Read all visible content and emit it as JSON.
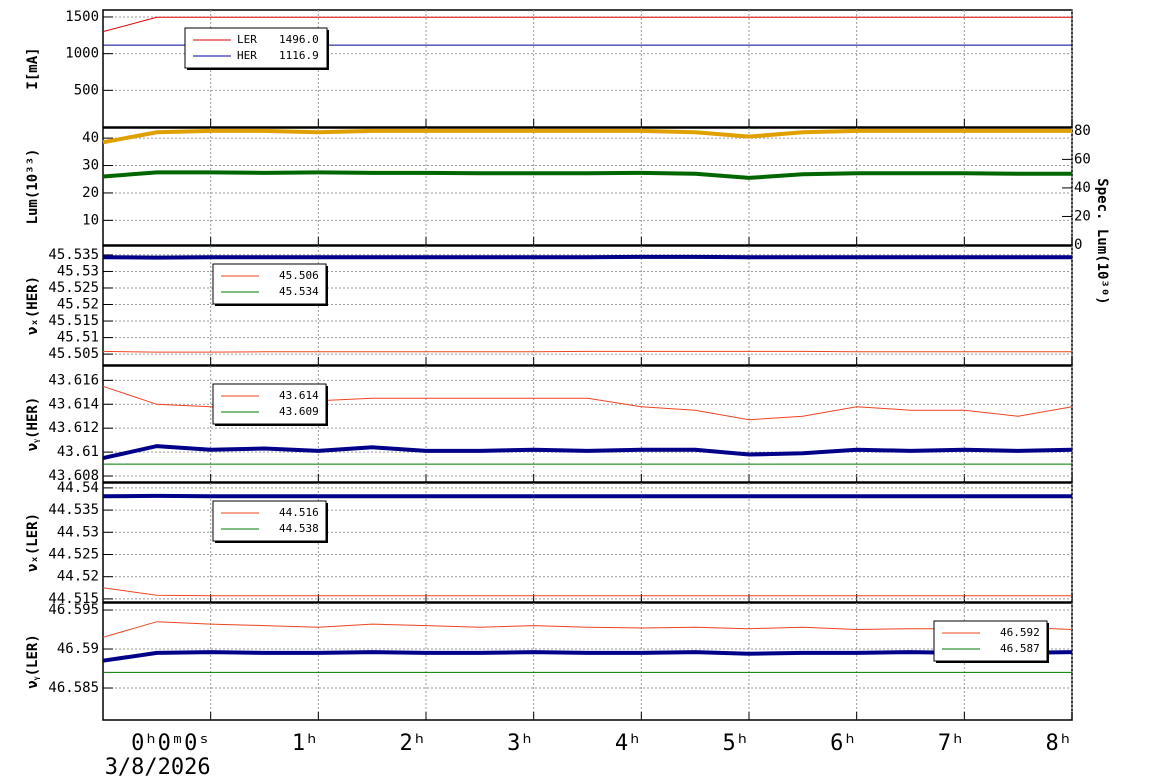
{
  "chart_data": [
    {
      "type": "line",
      "ylabel": "I[mA]",
      "xlim": [
        -1,
        8
      ],
      "xticks": [
        0,
        1,
        2,
        3,
        4,
        5,
        6,
        7,
        8
      ],
      "ylim": [
        0,
        1595
      ],
      "yticks": [
        500,
        1000,
        1500
      ],
      "grid": true,
      "legend": "upper left",
      "x": [
        -1,
        -0.5,
        0,
        0.5,
        1,
        1.5,
        2,
        2.5,
        3,
        3.5,
        4,
        4.5,
        5,
        5.5,
        6,
        6.5,
        7,
        7.5,
        8
      ],
      "series": [
        {
          "name": "LER",
          "legend_value": "1496.0",
          "color": "#dd0000",
          "values": [
            1300,
            1495,
            1496,
            1496,
            1496,
            1496,
            1496,
            1496,
            1496,
            1496,
            1496,
            1496,
            1496,
            1496,
            1496,
            1496,
            1496,
            1496,
            1496
          ]
        },
        {
          "name": "HER",
          "legend_value": "1116.9",
          "color": "#000099",
          "values": [
            1117,
            1117,
            1117,
            1117,
            1117,
            1117,
            1117,
            1117,
            1117,
            1117,
            1117,
            1117,
            1117,
            1117,
            1117,
            1117,
            1117,
            1117,
            1117
          ]
        }
      ]
    },
    {
      "type": "line",
      "ylabel": "Lum(10³³)",
      "y2label": "Spec. Lum(10³⁰)",
      "xlim": [
        -1,
        8
      ],
      "xticks": [
        0,
        1,
        2,
        3,
        4,
        5,
        6,
        7,
        8
      ],
      "ylim": [
        1,
        43.7
      ],
      "yticks": [
        10,
        20,
        30,
        40
      ],
      "y2lim": [
        0,
        82
      ],
      "y2ticks": [
        0,
        20,
        40,
        60,
        80
      ],
      "grid": true,
      "x": [
        -1,
        -0.5,
        0,
        0.5,
        1,
        1.5,
        2,
        2.5,
        3,
        3.5,
        4,
        4.5,
        5,
        5.5,
        6,
        6.5,
        7,
        7.5,
        8
      ],
      "series": [
        {
          "color": "#e0a000",
          "axis": "y2",
          "values": [
            72,
            79,
            80,
            80,
            79,
            80,
            80,
            80,
            80,
            80,
            80,
            79,
            76,
            79,
            80,
            80,
            80,
            80,
            80
          ]
        },
        {
          "color": "#006600",
          "values": [
            26,
            27.5,
            27.5,
            27.3,
            27.5,
            27.3,
            27.3,
            27.2,
            27.2,
            27.2,
            27.3,
            27,
            25.5,
            26.8,
            27.2,
            27.2,
            27.2,
            27,
            27
          ]
        }
      ]
    },
    {
      "type": "line",
      "ylabel": "νₓ(HER)",
      "xlim": [
        -1,
        8
      ],
      "xticks": [
        0,
        1,
        2,
        3,
        4,
        5,
        6,
        7,
        8
      ],
      "ylim": [
        45.5017,
        45.5377
      ],
      "yticks": [
        45.505,
        45.51,
        45.515,
        45.52,
        45.525,
        45.53,
        45.535
      ],
      "grid": true,
      "legend": "upper left",
      "x": [
        -1,
        -0.5,
        0,
        0.5,
        1,
        1.5,
        2,
        2.5,
        3,
        3.5,
        4,
        4.5,
        5,
        5.5,
        6,
        6.5,
        7,
        7.5,
        8
      ],
      "series": [
        {
          "name": "45.506",
          "color": "#ee4422",
          "values": [
            45.5058,
            45.5056,
            45.5056,
            45.5057,
            45.5057,
            45.5057,
            45.5057,
            45.5057,
            45.5057,
            45.5058,
            45.5058,
            45.5058,
            45.5058,
            45.5058,
            45.5057,
            45.5057,
            45.5057,
            45.5057,
            45.5057
          ]
        },
        {
          "name": "45.534",
          "color": "#007700",
          "values": [
            45.534,
            45.534,
            45.534,
            45.534,
            45.534,
            45.534,
            45.534,
            45.534,
            45.534,
            45.534,
            45.534,
            45.534,
            45.534,
            45.534,
            45.534,
            45.534,
            45.534,
            45.534,
            45.534
          ]
        },
        {
          "color": "#000088",
          "values": [
            45.5343,
            45.5342,
            45.5343,
            45.5343,
            45.5343,
            45.5343,
            45.5343,
            45.5343,
            45.5343,
            45.5343,
            45.5344,
            45.5344,
            45.5343,
            45.5343,
            45.5343,
            45.5343,
            45.5343,
            45.5343,
            45.5343
          ]
        }
      ]
    },
    {
      "type": "line",
      "ylabel": "νᵧ(HER)",
      "xlim": [
        -1,
        8
      ],
      "xticks": [
        0,
        1,
        2,
        3,
        4,
        5,
        6,
        7,
        8
      ],
      "ylim": [
        43.6075,
        43.6172
      ],
      "yticks": [
        43.608,
        43.61,
        43.612,
        43.614,
        43.616
      ],
      "grid": true,
      "legend": "upper left",
      "x": [
        -1,
        -0.5,
        0,
        0.5,
        1,
        1.5,
        2,
        2.5,
        3,
        3.5,
        4,
        4.5,
        5,
        5.5,
        6,
        6.5,
        7,
        7.5,
        8
      ],
      "series": [
        {
          "name": "43.614",
          "color": "#ee4422",
          "values": [
            43.6155,
            43.614,
            43.6138,
            43.6135,
            43.6143,
            43.6145,
            43.6145,
            43.6145,
            43.6145,
            43.6145,
            43.6138,
            43.6135,
            43.6127,
            43.613,
            43.6138,
            43.6135,
            43.6135,
            43.613,
            43.6138
          ]
        },
        {
          "name": "43.609",
          "color": "#007700",
          "values": [
            43.609,
            43.609,
            43.609,
            43.609,
            43.609,
            43.609,
            43.609,
            43.609,
            43.609,
            43.609,
            43.609,
            43.609,
            43.609,
            43.609,
            43.609,
            43.609,
            43.609,
            43.609,
            43.609
          ]
        },
        {
          "color": "#000088",
          "values": [
            43.6095,
            43.6105,
            43.6102,
            43.6103,
            43.6101,
            43.6104,
            43.6101,
            43.6101,
            43.6102,
            43.6101,
            43.6102,
            43.6102,
            43.6098,
            43.6099,
            43.6102,
            43.6101,
            43.6102,
            43.6101,
            43.6102
          ]
        }
      ]
    },
    {
      "type": "line",
      "ylabel": "νₓ(LER)",
      "xlim": [
        -1,
        8
      ],
      "xticks": [
        0,
        1,
        2,
        3,
        4,
        5,
        6,
        7,
        8
      ],
      "ylim": [
        44.5143,
        44.5411
      ],
      "yticks": [
        44.515,
        44.52,
        44.525,
        44.53,
        44.535,
        44.54
      ],
      "grid": true,
      "legend": "upper left",
      "x": [
        -1,
        -0.5,
        0,
        0.5,
        1,
        1.5,
        2,
        2.5,
        3,
        3.5,
        4,
        4.5,
        5,
        5.5,
        6,
        6.5,
        7,
        7.5,
        8
      ],
      "series": [
        {
          "name": "44.516",
          "color": "#ee4422",
          "values": [
            44.5175,
            44.5158,
            44.5157,
            44.5157,
            44.5157,
            44.5157,
            44.5157,
            44.5157,
            44.5157,
            44.5157,
            44.5157,
            44.5157,
            44.5157,
            44.5157,
            44.5157,
            44.5157,
            44.5157,
            44.5157,
            44.5157
          ]
        },
        {
          "name": "44.538",
          "color": "#007700",
          "values": [
            44.538,
            44.538,
            44.538,
            44.538,
            44.538,
            44.538,
            44.538,
            44.538,
            44.538,
            44.538,
            44.538,
            44.538,
            44.538,
            44.538,
            44.538,
            44.538,
            44.538,
            44.538,
            44.538
          ]
        },
        {
          "color": "#000088",
          "values": [
            44.5381,
            44.5382,
            44.5381,
            44.5381,
            44.5381,
            44.5381,
            44.5381,
            44.5381,
            44.5381,
            44.5381,
            44.5381,
            44.5381,
            44.5381,
            44.5381,
            44.5381,
            44.5381,
            44.5381,
            44.5381,
            44.5381
          ]
        }
      ]
    },
    {
      "type": "line",
      "ylabel": "νᵧ(LER)",
      "xlim": [
        -1,
        8
      ],
      "ylim": [
        46.5809,
        46.5959
      ],
      "yticks": [
        46.585,
        46.59,
        46.595
      ],
      "grid": true,
      "legend": "upper right",
      "xsublabel": "3/8/2026",
      "xticks": [
        {
          "value": 0,
          "label": "0ʰ0ᵐ0ˢ"
        },
        {
          "value": 1,
          "label": "1ʰ"
        },
        {
          "value": 2,
          "label": "2ʰ"
        },
        {
          "value": 3,
          "label": "3ʰ"
        },
        {
          "value": 4,
          "label": "4ʰ"
        },
        {
          "value": 5,
          "label": "5ʰ"
        },
        {
          "value": 6,
          "label": "6ʰ"
        },
        {
          "value": 7,
          "label": "7ʰ"
        },
        {
          "value": 8,
          "label": "8ʰ"
        }
      ],
      "x": [
        -1,
        -0.5,
        0,
        0.5,
        1,
        1.5,
        2,
        2.5,
        3,
        3.5,
        4,
        4.5,
        5,
        5.5,
        6,
        6.5,
        7,
        7.5,
        8
      ],
      "series": [
        {
          "name": "46.592",
          "color": "#ee4422",
          "values": [
            46.5915,
            46.5935,
            46.5932,
            46.593,
            46.5928,
            46.5932,
            46.593,
            46.5928,
            46.593,
            46.5928,
            46.5927,
            46.5928,
            46.5926,
            46.5928,
            46.5925,
            46.5926,
            46.5926,
            46.5928,
            46.5925
          ]
        },
        {
          "name": "46.587",
          "color": "#007700",
          "values": [
            46.587,
            46.587,
            46.587,
            46.587,
            46.587,
            46.587,
            46.587,
            46.587,
            46.587,
            46.587,
            46.587,
            46.587,
            46.587,
            46.587,
            46.587,
            46.587,
            46.587,
            46.587,
            46.587
          ]
        },
        {
          "color": "#000088",
          "values": [
            46.5885,
            46.5895,
            46.5896,
            46.5895,
            46.5895,
            46.5896,
            46.5895,
            46.5895,
            46.5896,
            46.5895,
            46.5895,
            46.5896,
            46.5894,
            46.5895,
            46.5895,
            46.5896,
            46.5895,
            46.5895,
            46.5896
          ]
        }
      ]
    }
  ]
}
